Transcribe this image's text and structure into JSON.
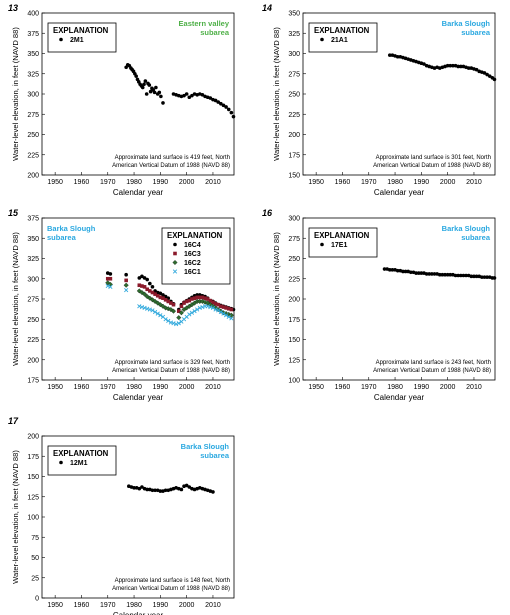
{
  "figure": {
    "xlabel": "Calendar year",
    "ylabel": "Water-level elevation, in feet (NAVD 88)",
    "explanation_title": "EXPLANATION",
    "x_ticks": [
      1950,
      1960,
      1970,
      1980,
      1990,
      2000,
      2010
    ]
  },
  "colors": {
    "eastern_valley": "#4fb048",
    "barka_slough": "#2aa8e0",
    "16C4": "#000000",
    "16C3": "#8b1a2b",
    "16C2": "#2f6b2f",
    "16C1": "#33aadd"
  },
  "chart_data": [
    {
      "type": "scatter",
      "panel": "13",
      "subarea": "Eastern valley subarea",
      "subarea_lines": [
        "Eastern valley",
        "subarea"
      ],
      "subarea_color": "#4fb048",
      "ylim": [
        200,
        400
      ],
      "yticks": [
        200,
        225,
        250,
        275,
        300,
        325,
        350,
        375,
        400
      ],
      "xlim": [
        1945,
        2018
      ],
      "note_lines": [
        "Approximate land surface is 419 feet, North",
        "American Vertical Datum of 1988 (NAVD 88)"
      ],
      "series": [
        {
          "name": "2M1",
          "marker": "circle",
          "color": "#000000",
          "x": [
            1977,
            1977.6,
            1978.2,
            1978.8,
            1979.3,
            1979.8,
            1980.3,
            1980.8,
            1981.3,
            1981.8,
            1982.3,
            1982.8,
            1983.3,
            1983.8,
            1984.3,
            1984.8,
            1985.3,
            1985.8,
            1986.3,
            1986.8,
            1987.3,
            1987.8,
            1988.3,
            1989,
            1989.6,
            1990.2,
            1991,
            1995,
            1996,
            1997,
            1998,
            1999,
            2000,
            2001,
            2002,
            2003,
            2004,
            2005,
            2006,
            2007,
            2008,
            2009,
            2010,
            2011,
            2012,
            2013,
            2014,
            2015,
            2016,
            2017,
            2017.8
          ],
          "y": [
            333,
            336,
            335,
            332,
            330,
            328,
            325,
            322,
            318,
            315,
            312,
            310,
            308,
            312,
            316,
            300,
            313,
            311,
            303,
            307,
            305,
            302,
            308,
            300,
            302,
            297,
            289,
            300,
            299,
            298,
            297,
            298,
            300,
            296,
            298,
            300,
            299,
            300,
            299,
            297,
            296,
            295,
            293,
            292,
            290,
            288,
            286,
            284,
            281,
            277,
            272
          ]
        }
      ]
    },
    {
      "type": "scatter",
      "panel": "14",
      "subarea": "Barka Slough subarea",
      "subarea_lines": [
        "Barka Slough",
        "subarea"
      ],
      "subarea_color": "#2aa8e0",
      "ylim": [
        150,
        350
      ],
      "yticks": [
        150,
        175,
        200,
        225,
        250,
        275,
        300,
        325,
        350
      ],
      "xlim": [
        1945,
        2018
      ],
      "note_lines": [
        "Approximate land surface is 301 feet, North",
        "American Vertical Datum of 1988 (NAVD 88)"
      ],
      "series": [
        {
          "name": "21A1",
          "marker": "circle",
          "color": "#000000",
          "x": [
            1978,
            1979,
            1980,
            1981,
            1982,
            1983,
            1984,
            1985,
            1986,
            1987,
            1988,
            1989,
            1990,
            1991,
            1992,
            1993,
            1994,
            1995,
            1996,
            1997,
            1998,
            1999,
            2000,
            2001,
            2002,
            2003,
            2004,
            2005,
            2006,
            2007,
            2008,
            2009,
            2010,
            2011,
            2012,
            2013,
            2014,
            2015,
            2016,
            2017,
            2017.8
          ],
          "y": [
            298,
            298,
            297,
            296,
            296,
            295,
            294,
            293,
            292,
            291,
            290,
            289,
            288,
            287,
            285,
            284,
            283,
            282,
            283,
            282,
            283,
            284,
            285,
            285,
            285,
            285,
            284,
            284,
            284,
            283,
            282,
            282,
            281,
            280,
            278,
            277,
            276,
            274,
            272,
            270,
            268
          ]
        }
      ]
    },
    {
      "type": "scatter",
      "panel": "15",
      "subarea": "Barka Slough subarea",
      "subarea_lines": [
        "Barka Slough",
        "subarea"
      ],
      "subarea_color": "#2aa8e0",
      "ylim": [
        175,
        375
      ],
      "yticks": [
        175,
        200,
        225,
        250,
        275,
        300,
        325,
        350,
        375
      ],
      "xlim": [
        1945,
        2018
      ],
      "note_lines": [
        "Approximate land surface is 329 feet, North",
        "American Vertical Datum of 1988 (NAVD 88)"
      ],
      "series": [
        {
          "name": "16C4",
          "marker": "circle",
          "color": "#000000",
          "x": [
            1970,
            1971,
            1977,
            1982,
            1983,
            1984,
            1985,
            1986,
            1987,
            1988,
            1989,
            1990,
            1991,
            1992,
            1993,
            1994,
            1995,
            1997,
            1998,
            1999,
            2000,
            2001,
            2002,
            2003,
            2004,
            2005,
            2006,
            2007,
            2008,
            2009,
            2010,
            2011,
            2012,
            2013,
            2014,
            2015,
            2016,
            2017,
            2017.8
          ],
          "y": [
            307,
            306,
            305,
            301,
            303,
            301,
            299,
            294,
            290,
            285,
            283,
            282,
            280,
            278,
            276,
            272,
            269,
            262,
            268,
            271,
            273,
            275,
            277,
            279,
            280,
            280,
            279,
            278,
            276,
            273,
            272,
            270,
            268,
            267,
            266,
            265,
            264,
            263,
            262
          ]
        },
        {
          "name": "16C3",
          "marker": "square",
          "color": "#8b1a2b",
          "x": [
            1970,
            1971,
            1977,
            1982,
            1983,
            1984,
            1985,
            1986,
            1987,
            1988,
            1989,
            1990,
            1991,
            1992,
            1993,
            1994,
            1995,
            1997,
            1998,
            1999,
            2000,
            2001,
            2002,
            2003,
            2004,
            2005,
            2006,
            2007,
            2008,
            2009,
            2010,
            2011,
            2012,
            2013,
            2014,
            2015,
            2016,
            2017
          ],
          "y": [
            300,
            300,
            298,
            292,
            291,
            290,
            287,
            285,
            283,
            281,
            279,
            277,
            276,
            274,
            272,
            270,
            268,
            260,
            266,
            270,
            272,
            273,
            275,
            276,
            277,
            277,
            277,
            276,
            275,
            273,
            271,
            269,
            268,
            266,
            265,
            264,
            263,
            262
          ]
        },
        {
          "name": "16C2",
          "marker": "diamond",
          "color": "#2f6b2f",
          "x": [
            1970,
            1971,
            1977,
            1982,
            1983,
            1984,
            1985,
            1986,
            1987,
            1988,
            1989,
            1990,
            1991,
            1992,
            1993,
            1994,
            1995,
            1997,
            1998,
            1999,
            2000,
            2001,
            2002,
            2003,
            2004,
            2005,
            2006,
            2007,
            2008,
            2009,
            2010,
            2011,
            2012,
            2013,
            2014,
            2015,
            2016,
            2017
          ],
          "y": [
            295,
            293,
            292,
            285,
            283,
            281,
            278,
            276,
            274,
            272,
            270,
            268,
            266,
            264,
            263,
            262,
            260,
            252,
            258,
            262,
            264,
            266,
            268,
            270,
            272,
            272,
            272,
            271,
            270,
            268,
            266,
            264,
            262,
            260,
            258,
            257,
            256,
            255
          ]
        },
        {
          "name": "16C1",
          "marker": "x",
          "color": "#33aadd",
          "x": [
            1970,
            1971,
            1977,
            1982,
            1983,
            1984,
            1985,
            1986,
            1987,
            1988,
            1989,
            1990,
            1991,
            1992,
            1993,
            1994,
            1995,
            1996,
            1997,
            1998,
            1999,
            2000,
            2001,
            2002,
            2003,
            2004,
            2005,
            2006,
            2007,
            2008,
            2009,
            2010,
            2011,
            2012,
            2013,
            2014,
            2015,
            2016,
            2017
          ],
          "y": [
            291,
            290,
            286,
            266,
            265,
            264,
            263,
            262,
            261,
            259,
            257,
            255,
            253,
            250,
            248,
            246,
            245,
            244,
            245,
            247,
            250,
            253,
            256,
            258,
            260,
            262,
            264,
            265,
            266,
            266,
            265,
            264,
            262,
            261,
            259,
            257,
            255,
            253,
            251
          ]
        }
      ]
    },
    {
      "type": "scatter",
      "panel": "16",
      "subarea": "Barka Slough subarea",
      "subarea_lines": [
        "Barka Slough",
        "subarea"
      ],
      "subarea_color": "#2aa8e0",
      "ylim": [
        100,
        300
      ],
      "yticks": [
        100,
        125,
        150,
        175,
        200,
        225,
        250,
        275,
        300
      ],
      "xlim": [
        1945,
        2018
      ],
      "note_lines": [
        "Approximate land surface is 243 feet, North",
        "American Vertical Datum of 1988 (NAVD 88)"
      ],
      "series": [
        {
          "name": "17E1",
          "marker": "circle",
          "color": "#000000",
          "x": [
            1976,
            1977,
            1978,
            1979,
            1980,
            1981,
            1982,
            1983,
            1984,
            1985,
            1986,
            1987,
            1988,
            1989,
            1990,
            1991,
            1992,
            1993,
            1994,
            1995,
            1996,
            1997,
            1998,
            1999,
            2000,
            2001,
            2002,
            2003,
            2004,
            2005,
            2006,
            2007,
            2008,
            2009,
            2010,
            2011,
            2012,
            2013,
            2014,
            2015,
            2016,
            2017,
            2017.8
          ],
          "y": [
            237,
            237,
            236,
            236,
            236,
            235,
            235,
            234,
            234,
            234,
            233,
            233,
            232,
            232,
            232,
            232,
            231,
            231,
            231,
            231,
            231,
            230,
            230,
            230,
            230,
            230,
            230,
            229,
            229,
            229,
            229,
            229,
            229,
            228,
            228,
            228,
            228,
            227,
            227,
            227,
            227,
            226,
            226
          ]
        }
      ]
    },
    {
      "type": "scatter",
      "panel": "17",
      "subarea": "Barka Slough subarea",
      "subarea_lines": [
        "Barka Slough",
        "subarea"
      ],
      "subarea_color": "#2aa8e0",
      "ylim": [
        0,
        200
      ],
      "yticks": [
        0,
        25,
        50,
        75,
        100,
        125,
        150,
        175,
        200
      ],
      "xlim": [
        1945,
        2018
      ],
      "note_lines": [
        "Approximate land surface is 148 feet, North",
        "American Vertical Datum of 1988 (NAVD 88)"
      ],
      "series": [
        {
          "name": "12M1",
          "marker": "circle",
          "color": "#000000",
          "x": [
            1978,
            1979,
            1980,
            1981,
            1982,
            1983,
            1984,
            1985,
            1986,
            1987,
            1988,
            1989,
            1990,
            1991,
            1992,
            1993,
            1994,
            1995,
            1996,
            1997,
            1998,
            1999,
            2000,
            2001,
            2002,
            2003,
            2004,
            2005,
            2006,
            2007,
            2008,
            2009,
            2010
          ],
          "y": [
            138,
            137,
            136,
            136,
            135,
            137,
            135,
            134,
            134,
            133,
            133,
            133,
            132,
            132,
            133,
            133,
            134,
            135,
            136,
            135,
            134,
            138,
            139,
            137,
            135,
            134,
            135,
            136,
            135,
            134,
            133,
            132,
            131
          ]
        }
      ]
    }
  ]
}
